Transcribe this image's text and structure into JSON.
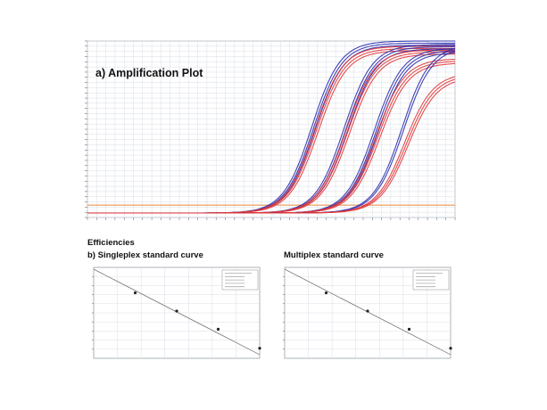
{
  "titles": {
    "amplification": "a) Amplification Plot",
    "efficiencies": "Efficiencies",
    "singleplex": "b) Singleplex standard curve",
    "multiplex": "Multiplex standard curve"
  },
  "colors": {
    "blue_series": "#2b2fae",
    "red_series": "#e0383a",
    "threshold": "#e8893a",
    "grid": "#d8dde6",
    "axis": "#555555"
  },
  "chart_data": [
    {
      "type": "line",
      "title": "a) Amplification Plot",
      "x_range": [
        0,
        40
      ],
      "y_range": [
        0,
        1
      ],
      "threshold": 0.07,
      "grid": true,
      "series": [
        {
          "color": "blue",
          "midpoints": [
            24.4,
            24.6,
            24.8
          ],
          "plateau": 1.0
        },
        {
          "color": "red",
          "midpoints": [
            24.7,
            24.9,
            25.1
          ],
          "plateau": 0.97
        },
        {
          "color": "blue",
          "midpoints": [
            27.9,
            28.1,
            28.3
          ],
          "plateau": 0.98
        },
        {
          "color": "red",
          "midpoints": [
            28.1,
            28.3,
            28.5
          ],
          "plateau": 0.95
        },
        {
          "color": "blue",
          "midpoints": [
            31.2,
            31.4,
            31.6
          ],
          "plateau": 0.96
        },
        {
          "color": "red",
          "midpoints": [
            31.4,
            31.6,
            31.8
          ],
          "plateau": 0.9
        },
        {
          "color": "blue",
          "midpoints": [
            34.2,
            34.4
          ],
          "plateau": 0.98
        },
        {
          "color": "red",
          "midpoints": [
            34.5,
            34.7,
            34.9
          ],
          "plateau": 0.82
        }
      ]
    },
    {
      "type": "scatter",
      "title": "b) Singleplex standard curve",
      "x": [
        1,
        2,
        3,
        4
      ],
      "y": [
        0.72,
        0.52,
        0.32,
        0.11
      ],
      "fit": {
        "x0": 0,
        "y0": 0.98,
        "x1": 4,
        "y1": 0.04
      },
      "xlim": [
        0,
        4
      ],
      "ylim": [
        0,
        1
      ],
      "legend": "top-right",
      "grid": true
    },
    {
      "type": "scatter",
      "title": "Multiplex standard curve",
      "x": [
        1,
        2,
        3,
        4
      ],
      "y": [
        0.72,
        0.52,
        0.32,
        0.11
      ],
      "fit": {
        "x0": 0,
        "y0": 0.98,
        "x1": 4,
        "y1": 0.04
      },
      "xlim": [
        0,
        4
      ],
      "ylim": [
        0,
        1
      ],
      "legend": "top-right",
      "grid": true
    }
  ]
}
